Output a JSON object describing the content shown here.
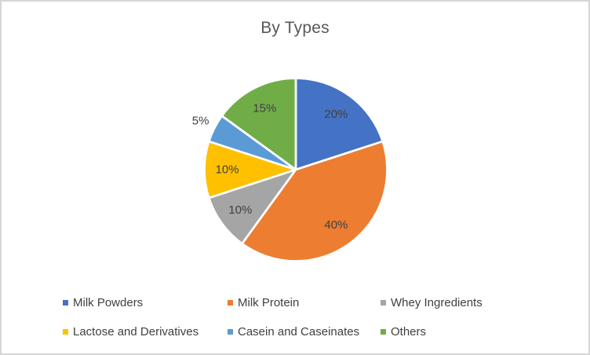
{
  "chart_data": {
    "type": "pie",
    "title": "By Types",
    "categories": [
      "Milk Powders",
      "Milk Protein",
      "Whey Ingredients",
      "Lactose and Derivatives",
      "Casein and Caseinates",
      "Others"
    ],
    "values": [
      20,
      40,
      10,
      10,
      5,
      15
    ],
    "data_labels": [
      "20%",
      "40%",
      "10%",
      "10%",
      "5%",
      "15%"
    ],
    "colors": [
      "#4472C4",
      "#ED7D31",
      "#A5A5A5",
      "#FFC000",
      "#5B9BD5",
      "#70AD47"
    ],
    "start_angle_deg": 0,
    "direction": "clockwise",
    "slice_border_color": "#FFFFFF",
    "title_color": "#595959",
    "label_color": "#404040",
    "legend_position": "bottom",
    "legend_rows": 2,
    "legend_row1": [
      "Milk Powders",
      "Milk Protein",
      "Whey Ingredients"
    ],
    "legend_row2": [
      "Lactose and Derivatives",
      "Casein and Caseinates",
      "Others"
    ]
  },
  "frame": {
    "background": "#FFFFFF",
    "border_color": "#D5D5D5"
  }
}
